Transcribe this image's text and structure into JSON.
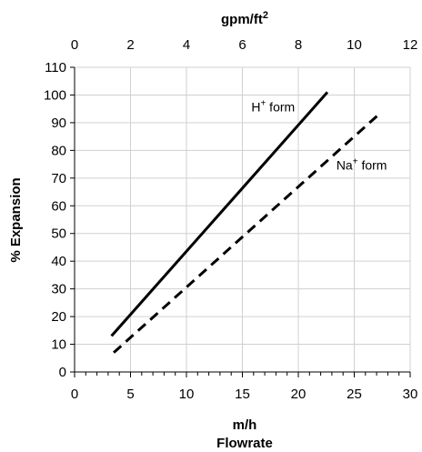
{
  "chart_data": {
    "type": "line",
    "title": "",
    "xlabel": "m/h",
    "xlabel2": "Flowrate",
    "ylabel": "% Expansion",
    "x2label_base": "gpm/ft",
    "x2label_sup": "2",
    "xlim": [
      0,
      30
    ],
    "ylim": [
      0,
      110
    ],
    "x2lim": [
      0,
      12
    ],
    "x_ticks": [
      0,
      5,
      10,
      15,
      20,
      25,
      30
    ],
    "x_minor_step": 1,
    "y_ticks": [
      0,
      10,
      20,
      30,
      40,
      50,
      60,
      70,
      80,
      90,
      100,
      110
    ],
    "x2_ticks": [
      0,
      2,
      4,
      6,
      8,
      10,
      12
    ],
    "grid": true,
    "series": [
      {
        "name_base": "H",
        "name_sup": "+",
        "name_rest": " form",
        "style": "solid",
        "color": "#000000",
        "x": [
          3.3,
          22.6
        ],
        "y": [
          13,
          101
        ],
        "label_at": [
          15.8,
          94
        ]
      },
      {
        "name_base": "Na",
        "name_sup": "+",
        "name_rest": " form",
        "style": "dashed",
        "color": "#000000",
        "x": [
          3.5,
          27.2
        ],
        "y": [
          7,
          93
        ],
        "label_at": [
          23.4,
          73
        ]
      }
    ]
  }
}
